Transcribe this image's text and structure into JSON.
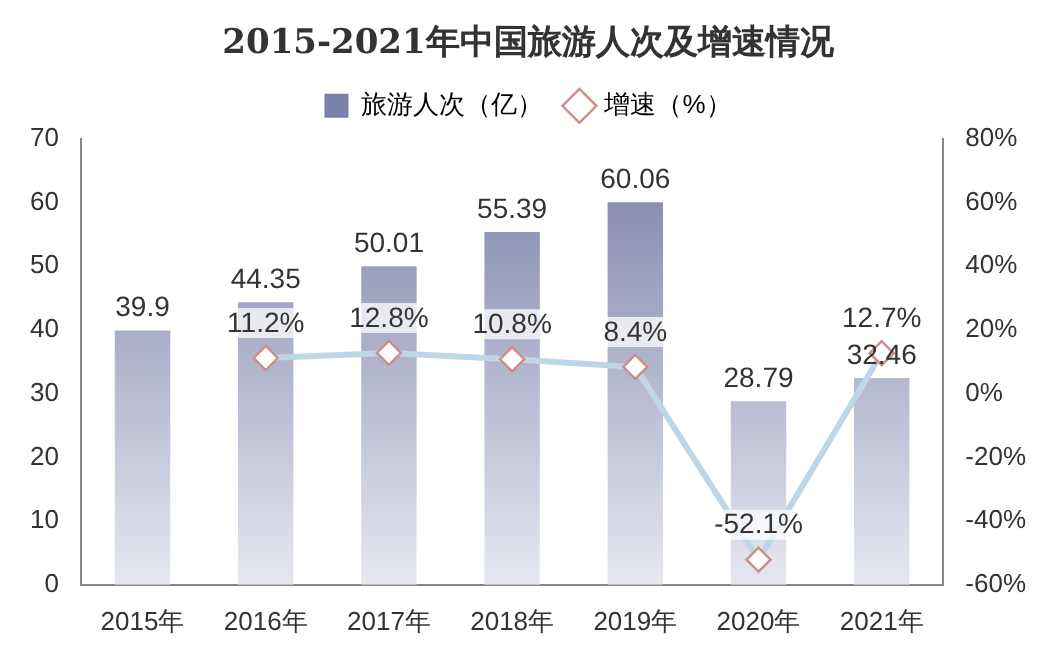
{
  "chart_data": {
    "type": "bar",
    "title": "2015-2021年中国旅游人次及增速情况",
    "categories": [
      "2015年",
      "2016年",
      "2017年",
      "2018年",
      "2019年",
      "2020年",
      "2021年"
    ],
    "series": [
      {
        "name": "旅游人次（亿）",
        "color": "#7b80a8",
        "values": [
          39.9,
          44.35,
          50.01,
          55.39,
          60.06,
          28.79,
          32.46
        ]
      },
      {
        "name": "增速（%）",
        "type": "line",
        "axis": "y2",
        "color": "#bdd7e7",
        "marker": "diamond",
        "values": [
          null,
          11.2,
          12.8,
          10.8,
          8.4,
          -52.1,
          12.7
        ],
        "value_labels": [
          null,
          "11.2%",
          "12.8%",
          "10.8%",
          "8.4%",
          "-52.1%",
          "12.7%"
        ]
      }
    ],
    "ylim": [
      0,
      70
    ],
    "yticks": [
      0,
      10,
      20,
      30,
      40,
      50,
      60,
      70
    ],
    "y2lim": [
      -60,
      80
    ],
    "y2ticks": [
      {
        "value": -60,
        "label": "-60%"
      },
      {
        "value": -40,
        "label": "-40%"
      },
      {
        "value": -20,
        "label": "-20%"
      },
      {
        "value": 0,
        "label": "0%"
      },
      {
        "value": 20,
        "label": "20%"
      },
      {
        "value": 40,
        "label": "40%"
      },
      {
        "value": 60,
        "label": "60%"
      },
      {
        "value": 80,
        "label": "80%"
      }
    ],
    "data_labels": true,
    "legend": "top",
    "grid": false
  }
}
